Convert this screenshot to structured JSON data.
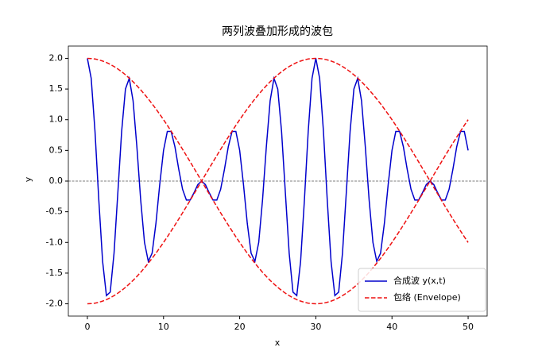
{
  "chart_data": {
    "type": "line",
    "title": "两列波叠加形成的波包",
    "xlabel": "x",
    "ylabel": "y",
    "xlim": [
      -2.5,
      52.5
    ],
    "ylim": [
      -2.2,
      2.2
    ],
    "xticks": [
      0,
      10,
      20,
      30,
      40,
      50
    ],
    "yticks": [
      {
        "value": -2,
        "label": "-2.0"
      },
      -1.5,
      {
        "value": -1,
        "label": "-1.0"
      },
      -0.5,
      {
        "value": 0,
        "label": "0.0"
      },
      0.5,
      {
        "value": 1,
        "label": "1.0"
      },
      1.5,
      {
        "value": 2,
        "label": "2.0"
      }
    ],
    "legend": "lower right",
    "x": [
      0,
      0.5,
      1,
      1.5,
      2,
      2.5,
      3,
      3.5,
      4,
      4.5,
      5,
      5.5,
      6,
      6.5,
      7,
      7.5,
      8,
      8.5,
      9,
      9.5,
      10,
      10.5,
      11,
      11.5,
      12,
      12.5,
      13,
      13.5,
      14,
      14.5,
      15,
      15.5,
      16,
      16.5,
      17,
      17.5,
      18,
      18.5,
      19,
      19.5,
      20,
      20.5,
      21,
      21.5,
      22,
      22.5,
      23,
      23.5,
      24,
      24.5,
      25,
      25.5,
      26,
      26.5,
      27,
      27.5,
      28,
      28.5,
      29,
      29.5,
      30,
      30.5,
      31,
      31.5,
      32,
      32.5,
      33,
      33.5,
      34,
      34.5,
      35,
      35.5,
      36,
      36.5,
      37,
      37.5,
      38,
      38.5,
      39,
      39.5,
      40,
      40.5,
      41,
      41.5,
      42,
      42.5,
      43,
      43.5,
      44,
      44.5,
      45,
      45.5,
      46,
      46.5,
      47,
      47.5,
      48,
      48.5,
      49,
      49.5,
      50
    ],
    "series": [
      {
        "name": "合成波 y(x,t)",
        "color": "#0000cc",
        "linestyle": "solid",
        "values": [
          2,
          1.675,
          0.809,
          -0.309,
          -1.309,
          -1.866,
          -1.809,
          -1.175,
          -0.191,
          0.809,
          1.5,
          1.675,
          1.309,
          0.557,
          -0.309,
          -1,
          -1.309,
          -1.175,
          -0.691,
          -0.057,
          0.5,
          0.809,
          0.809,
          0.557,
          0.191,
          -0.134,
          -0.309,
          -0.309,
          -0.191,
          -0.057,
          0,
          -0.057,
          -0.191,
          -0.309,
          -0.309,
          -0.134,
          0.191,
          0.557,
          0.809,
          0.809,
          0.5,
          -0.057,
          -0.691,
          -1.175,
          -1.309,
          -1,
          -0.309,
          0.557,
          1.309,
          1.675,
          1.5,
          0.809,
          -0.191,
          -1.175,
          -1.809,
          -1.866,
          -1.309,
          -0.309,
          0.809,
          1.675,
          2,
          1.675,
          0.809,
          -0.309,
          -1.309,
          -1.866,
          -1.809,
          -1.175,
          -0.191,
          0.809,
          1.5,
          1.675,
          1.309,
          0.557,
          -0.309,
          -1,
          -1.309,
          -1.175,
          -0.691,
          -0.057,
          0.5,
          0.809,
          0.809,
          0.557,
          0.191,
          -0.134,
          -0.309,
          -0.309,
          -0.191,
          -0.057,
          0,
          -0.057,
          -0.191,
          -0.309,
          -0.309,
          -0.134,
          0.191,
          0.557,
          0.809,
          0.809,
          0.5
        ]
      },
      {
        "name": "包络 (Envelope)",
        "color": "#ee1111",
        "linestyle": "dashed",
        "values": [
          2,
          1.997,
          1.989,
          1.975,
          1.956,
          1.932,
          1.902,
          1.867,
          1.827,
          1.782,
          1.732,
          1.677,
          1.618,
          1.554,
          1.486,
          1.414,
          1.338,
          1.259,
          1.176,
          1.089,
          1,
          0.908,
          0.813,
          0.717,
          0.618,
          0.518,
          0.416,
          0.313,
          0.209,
          0.105,
          0,
          -0.105,
          -0.209,
          -0.313,
          -0.416,
          -0.518,
          -0.618,
          -0.717,
          -0.813,
          -0.908,
          -1,
          -1.089,
          -1.176,
          -1.259,
          -1.338,
          -1.414,
          -1.486,
          -1.554,
          -1.618,
          -1.677,
          -1.732,
          -1.782,
          -1.827,
          -1.867,
          -1.902,
          -1.932,
          -1.956,
          -1.975,
          -1.989,
          -1.997,
          -2,
          -1.997,
          -1.989,
          -1.975,
          -1.956,
          -1.932,
          -1.902,
          -1.867,
          -1.827,
          -1.782,
          -1.732,
          -1.677,
          -1.618,
          -1.554,
          -1.486,
          -1.414,
          -1.338,
          -1.259,
          -1.176,
          -1.089,
          -1,
          -0.908,
          -0.813,
          -0.717,
          -0.618,
          -0.518,
          -0.416,
          -0.313,
          -0.209,
          -0.105,
          0,
          0.105,
          0.209,
          0.313,
          0.416,
          0.518,
          0.618,
          0.717,
          0.813,
          0.908,
          1
        ]
      },
      {
        "color": "#ee1111",
        "linestyle": "dashed",
        "values": [
          -2,
          -1.997,
          -1.989,
          -1.975,
          -1.956,
          -1.932,
          -1.902,
          -1.867,
          -1.827,
          -1.782,
          -1.732,
          -1.677,
          -1.618,
          -1.554,
          -1.486,
          -1.414,
          -1.338,
          -1.259,
          -1.176,
          -1.089,
          -1,
          -0.908,
          -0.813,
          -0.717,
          -0.618,
          -0.518,
          -0.416,
          -0.313,
          -0.209,
          -0.105,
          0,
          0.105,
          0.209,
          0.313,
          0.416,
          0.518,
          0.618,
          0.717,
          0.813,
          0.908,
          1,
          1.089,
          1.176,
          1.259,
          1.338,
          1.414,
          1.486,
          1.554,
          1.618,
          1.677,
          1.732,
          1.782,
          1.827,
          1.867,
          1.902,
          1.932,
          1.956,
          1.975,
          1.989,
          1.997,
          2,
          1.997,
          1.989,
          1.975,
          1.956,
          1.932,
          1.902,
          1.867,
          1.827,
          1.782,
          1.732,
          1.677,
          1.618,
          1.554,
          1.486,
          1.414,
          1.338,
          1.259,
          1.176,
          1.089,
          1,
          0.908,
          0.813,
          0.717,
          0.618,
          0.518,
          0.416,
          0.313,
          0.209,
          0.105,
          0,
          -0.105,
          -0.209,
          -0.313,
          -0.416,
          -0.518,
          -0.618,
          -0.717,
          -0.813,
          -0.908,
          -1
        ]
      }
    ]
  }
}
